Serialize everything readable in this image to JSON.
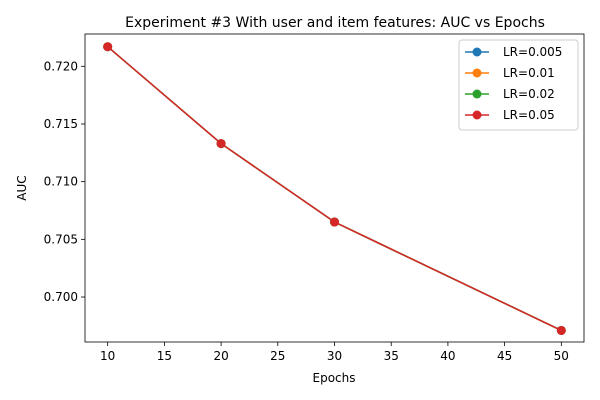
{
  "chart_data": {
    "type": "line",
    "title": "Experiment #3 With user and item features: AUC vs Epochs",
    "xlabel": "Epochs",
    "ylabel": "AUC",
    "x": [
      10,
      20,
      30,
      50
    ],
    "xlim": [
      8,
      52
    ],
    "ylim": [
      0.6961,
      0.7228
    ],
    "xticks": [
      "10",
      "15",
      "20",
      "25",
      "30",
      "35",
      "40",
      "45",
      "50"
    ],
    "yticks": [
      "0.700",
      "0.705",
      "0.710",
      "0.715",
      "0.720"
    ],
    "grid": false,
    "legend_position": "top-right",
    "series": [
      {
        "name": "LR=0.005",
        "color": "#1f77b4",
        "values": [
          0.7217,
          0.7133,
          0.7065,
          0.6971
        ]
      },
      {
        "name": "LR=0.01",
        "color": "#ff7f0e",
        "values": [
          0.7217,
          0.7133,
          0.7065,
          0.6971
        ]
      },
      {
        "name": "LR=0.02",
        "color": "#2ca02c",
        "values": [
          0.7217,
          0.7133,
          0.7065,
          0.6971
        ]
      },
      {
        "name": "LR=0.05",
        "color": "#d62728",
        "values": [
          0.7217,
          0.7133,
          0.7065,
          0.6971
        ]
      }
    ]
  }
}
